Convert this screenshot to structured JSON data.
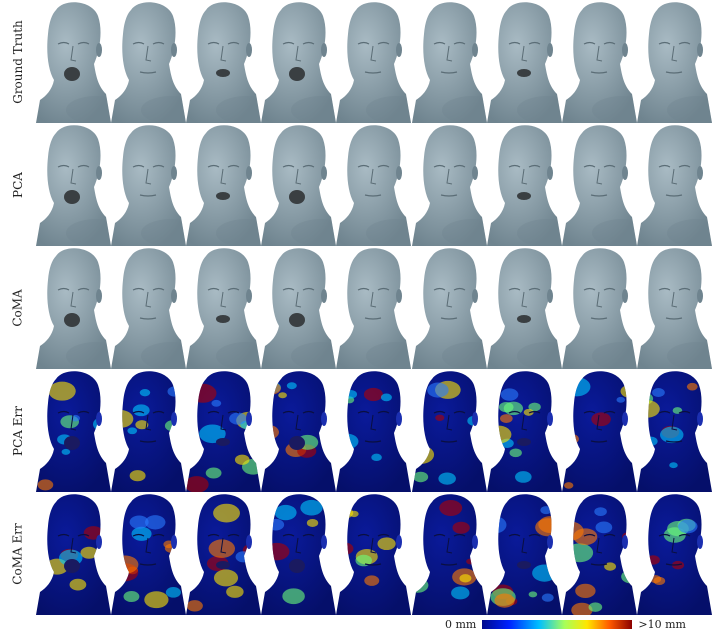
{
  "rows": [
    {
      "label": "Ground Truth",
      "type": "mesh"
    },
    {
      "label": "PCA",
      "type": "mesh"
    },
    {
      "label": "CoMA",
      "type": "mesh"
    },
    {
      "label": "PCA Err",
      "type": "error"
    },
    {
      "label": "CoMA Err",
      "type": "error"
    }
  ],
  "columns": 9,
  "expressions": [
    {
      "mouth": "open-wide"
    },
    {
      "mouth": "closed"
    },
    {
      "mouth": "open"
    },
    {
      "mouth": "open-wide"
    },
    {
      "mouth": "closed"
    },
    {
      "mouth": "closed"
    },
    {
      "mouth": "open"
    },
    {
      "mouth": "closed"
    },
    {
      "mouth": "closed"
    }
  ],
  "colors": {
    "mesh": "#8fa3ad",
    "mesh_shade": "#6f848f",
    "mouth": "#3a3f42",
    "error_low": "#0a1a9a",
    "error_mid": "#00c8ff",
    "error_high": "#b00000"
  },
  "legend": {
    "min_label": "0 mm",
    "max_label": ">10 mm"
  }
}
